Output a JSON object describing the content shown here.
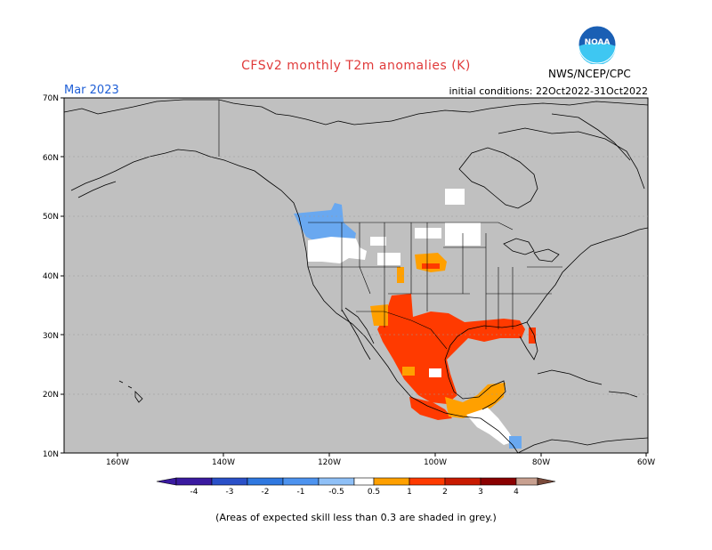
{
  "title": "CFSv2 monthly T2m anomalies (K)",
  "agency": "NWS/NCEP/CPC",
  "logo_text": "NOAA",
  "valid_month": "Mar 2023",
  "initial_conditions": "initial conditions: 22Oct2022-31Oct2022",
  "footnote": "(Areas of expected skill less than 0.3 are shaded in grey.)",
  "map": {
    "lon_range": [
      -170,
      -60
    ],
    "lat_range": [
      10,
      70
    ],
    "lat_ticks": [
      "70N",
      "60N",
      "50N",
      "40N",
      "30N",
      "20N",
      "10N"
    ],
    "lon_ticks": [
      "160W",
      "140W",
      "120W",
      "100W",
      "80W",
      "60W"
    ],
    "background_color": "#c0c0c0",
    "anomaly_regions": [
      {
        "name": "pacific-northwest-cold",
        "level": -1,
        "color": "#69a8f0"
      },
      {
        "name": "northwest-near-normal",
        "level": 0,
        "color": "#ffffff"
      },
      {
        "name": "northern-plains-warm",
        "level": 0.5,
        "color": "#ffa000"
      },
      {
        "name": "south-central-warm",
        "level": 1,
        "color": "#ff3a00"
      },
      {
        "name": "gulf-coast-warm",
        "level": 1,
        "color": "#ff3a00"
      },
      {
        "name": "mexico-warm",
        "level": 1,
        "color": "#ff3a00"
      },
      {
        "name": "southern-mexico-moderate",
        "level": 0.5,
        "color": "#ffa000"
      },
      {
        "name": "central-america-near-normal",
        "level": 0,
        "color": "#ffffff"
      }
    ]
  },
  "colorbar": {
    "labels": [
      "-4",
      "-3",
      "-2",
      "-1",
      "-0.5",
      "0.5",
      "1",
      "2",
      "3",
      "4"
    ],
    "colors": [
      "#3a1aa0",
      "#2a50c8",
      "#2f78e0",
      "#4d93ef",
      "#8fc0f7",
      "#ffffff",
      "#ffa000",
      "#ff3a00",
      "#c81a00",
      "#8a0000",
      "#c8a090",
      "#7a4a3a"
    ]
  }
}
